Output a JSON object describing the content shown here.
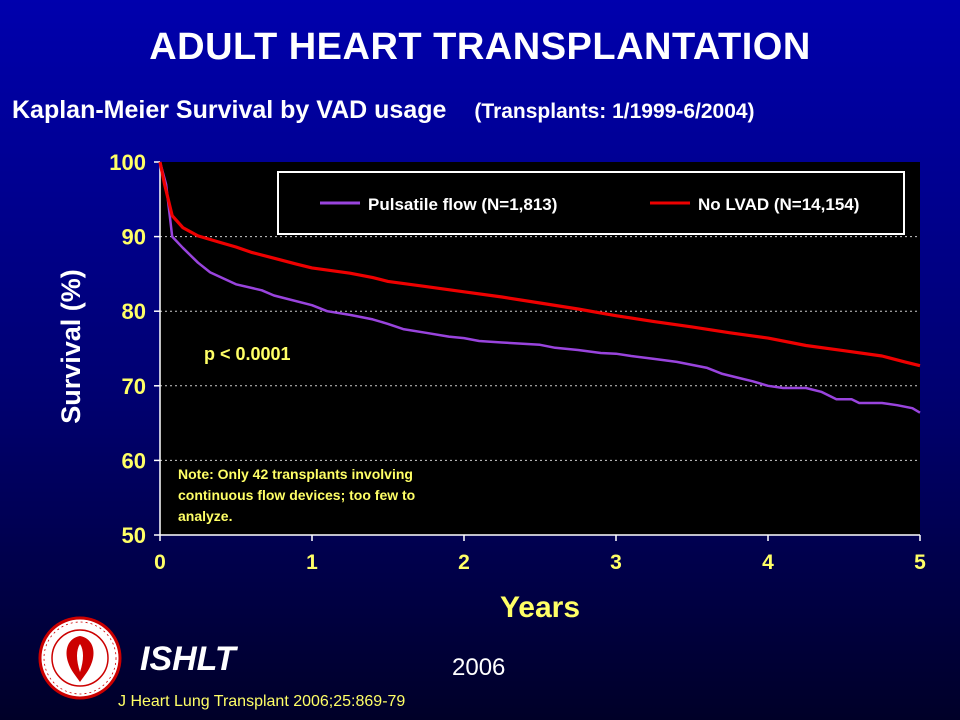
{
  "slide": {
    "title": "ADULT HEART TRANSPLANTATION",
    "subtitle": "Kaplan-Meier Survival by VAD usage",
    "subtitle_range": "(Transplants: 1/1999-6/2004)",
    "p_value_text": "p < 0.0001",
    "note_lines": [
      "Note: Only 42 transplants involving",
      "continuous flow devices; too few to",
      "analyze."
    ],
    "org_label": "ISHLT",
    "year_label": "2006",
    "citation": "J Heart Lung Transplant 2006;25:869-79",
    "logo_icon": "ishlt-seal-icon",
    "colors": {
      "background_top": "#0000ad",
      "background_bottom": "#000028",
      "plot_background": "#000000",
      "axis_text": "#ffff66",
      "ylabel_text": "#ffffff",
      "pulsatile": "#9944dd",
      "no_lvad": "#ee0000"
    }
  },
  "chart_data": {
    "type": "line",
    "title": "",
    "xlabel": "Years",
    "ylabel": "Survival (%)",
    "xlim": [
      0,
      5
    ],
    "ylim": [
      50,
      100
    ],
    "x_ticks": [
      0,
      1,
      2,
      3,
      4,
      5
    ],
    "y_ticks": [
      50,
      60,
      70,
      80,
      90,
      100
    ],
    "grid": "horizontal dotted",
    "legend_position": "top-right",
    "series": [
      {
        "name": "Pulsatile flow (N=1,813)",
        "color": "#9944dd",
        "points": [
          [
            0,
            100
          ],
          [
            0.04,
            97
          ],
          [
            0.08,
            90
          ],
          [
            0.15,
            88.5
          ],
          [
            0.25,
            86.5
          ],
          [
            0.33,
            85.2
          ],
          [
            0.5,
            83.6
          ],
          [
            0.67,
            82.8
          ],
          [
            0.75,
            82.1
          ],
          [
            1.0,
            80.8
          ],
          [
            1.1,
            80.0
          ],
          [
            1.25,
            79.5
          ],
          [
            1.4,
            78.9
          ],
          [
            1.5,
            78.3
          ],
          [
            1.6,
            77.6
          ],
          [
            1.75,
            77.1
          ],
          [
            1.9,
            76.6
          ],
          [
            2.0,
            76.4
          ],
          [
            2.1,
            76.0
          ],
          [
            2.25,
            75.8
          ],
          [
            2.5,
            75.5
          ],
          [
            2.6,
            75.1
          ],
          [
            2.75,
            74.8
          ],
          [
            2.9,
            74.4
          ],
          [
            3.0,
            74.3
          ],
          [
            3.1,
            74.0
          ],
          [
            3.25,
            73.6
          ],
          [
            3.4,
            73.2
          ],
          [
            3.5,
            72.8
          ],
          [
            3.6,
            72.4
          ],
          [
            3.7,
            71.6
          ],
          [
            3.8,
            71.1
          ],
          [
            3.9,
            70.6
          ],
          [
            4.0,
            70.0
          ],
          [
            4.1,
            69.7
          ],
          [
            4.25,
            69.7
          ],
          [
            4.35,
            69.2
          ],
          [
            4.45,
            68.2
          ],
          [
            4.55,
            68.2
          ],
          [
            4.6,
            67.7
          ],
          [
            4.75,
            67.7
          ],
          [
            4.85,
            67.4
          ],
          [
            4.95,
            67.0
          ],
          [
            5.0,
            66.4
          ]
        ]
      },
      {
        "name": "No LVAD (N=14,154)",
        "color": "#ee0000",
        "points": [
          [
            0,
            100
          ],
          [
            0.03,
            97
          ],
          [
            0.08,
            92.8
          ],
          [
            0.15,
            91.2
          ],
          [
            0.25,
            90.1
          ],
          [
            0.4,
            89.2
          ],
          [
            0.5,
            88.6
          ],
          [
            0.6,
            87.9
          ],
          [
            0.75,
            87.1
          ],
          [
            0.9,
            86.3
          ],
          [
            1.0,
            85.8
          ],
          [
            1.25,
            85.1
          ],
          [
            1.4,
            84.5
          ],
          [
            1.5,
            84.0
          ],
          [
            1.75,
            83.3
          ],
          [
            2.0,
            82.6
          ],
          [
            2.25,
            81.9
          ],
          [
            2.5,
            81.1
          ],
          [
            2.75,
            80.3
          ],
          [
            3.0,
            79.4
          ],
          [
            3.25,
            78.6
          ],
          [
            3.5,
            77.9
          ],
          [
            3.75,
            77.1
          ],
          [
            4.0,
            76.4
          ],
          [
            4.25,
            75.4
          ],
          [
            4.5,
            74.7
          ],
          [
            4.75,
            74.0
          ],
          [
            4.9,
            73.2
          ],
          [
            5.0,
            72.7
          ]
        ]
      }
    ]
  }
}
